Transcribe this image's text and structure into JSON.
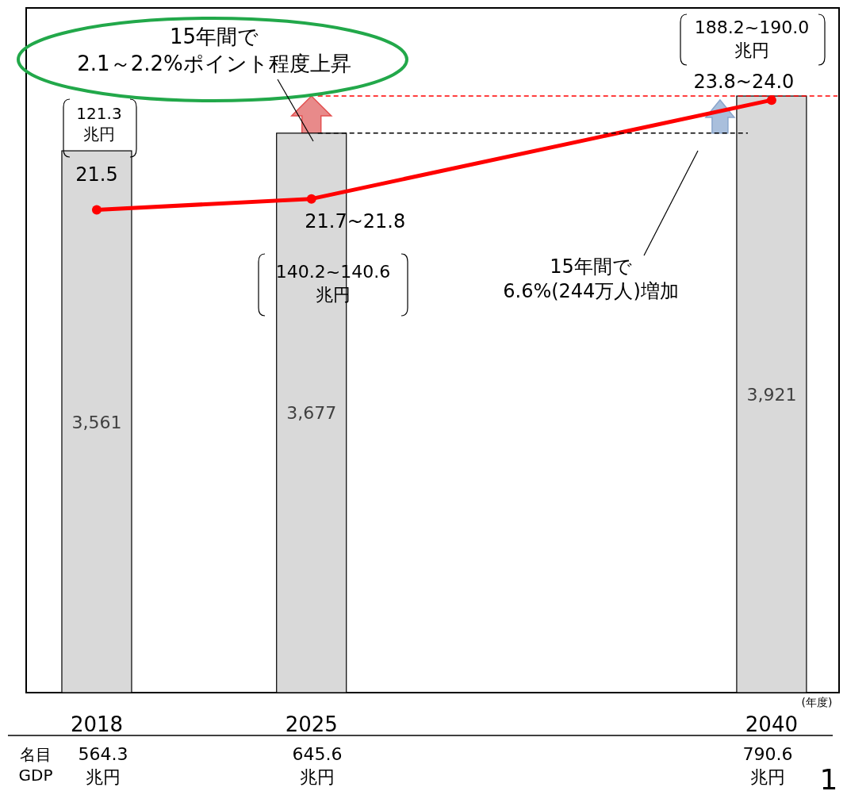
{
  "chart_data": {
    "type": "bar",
    "x": [
      2018,
      2025,
      2040
    ],
    "xlim": [
      2015.7,
      2042.2
    ],
    "xticks": [
      2018,
      2025,
      2040
    ],
    "ylim": [
      0,
      4500
    ],
    "y2lim": [
      10.5,
      26.1
    ],
    "tick_labels": "x",
    "series": [
      {
        "color": "#d9d9d9",
        "values": [
          3561,
          3677,
          3921
        ],
        "value_labels": [
          "3,561",
          "3,677",
          "3,921"
        ]
      },
      {
        "type": "line",
        "axis": "y2",
        "color": "#ff0000",
        "marker": "circle",
        "values": [
          21.5,
          21.75,
          24.0
        ],
        "value_labels": [
          "21.5",
          "21.7~21.8",
          "23.8~24.0"
        ]
      }
    ],
    "ref_lines": [
      {
        "axis": "y",
        "value": 3677,
        "color": "#000000",
        "line_style": "dashed"
      },
      {
        "axis": "y",
        "value": 3921,
        "color": "#ff0000",
        "line_style": "dashed"
      }
    ],
    "annotations": [
      "15年間で\n2.1～2.2%ポイント程度上昇",
      "121.3\n兆円",
      "140.2~140.6\n兆円",
      "188.2~190.0\n兆円",
      "15年間で\n6.6%(244万人)増加",
      "(年度)",
      "名目\nGDP",
      "564.3\n兆円",
      "645.6\n兆円",
      "790.6\n兆円",
      "1"
    ]
  }
}
